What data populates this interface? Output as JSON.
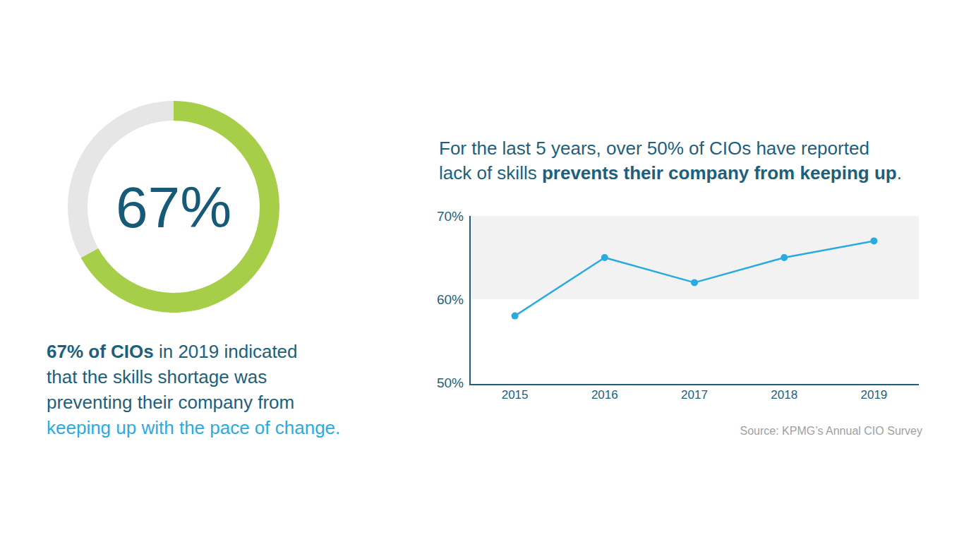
{
  "chart_data": [
    {
      "type": "donut",
      "values": [
        67,
        33
      ],
      "value_labels": [
        "67%",
        null
      ],
      "colors": [
        "#a6ce48",
        "#e6e6e6"
      ],
      "data_labels": true,
      "annotations": [
        "67% of CIOs",
        " in 2019 indicated",
        "that the skills shortage was",
        "preventing their company from",
        "keeping up with the pace of change."
      ]
    },
    {
      "type": "line",
      "title": [
        "For the last 5 years, over 50% of CIOs have reported",
        "lack of skills ",
        "prevents their company from keeping up",
        "."
      ],
      "categories": [
        "2015",
        "2016",
        "2017",
        "2018",
        "2019"
      ],
      "values": [
        58,
        65,
        62,
        65,
        67
      ],
      "color": "#29abe2",
      "marker": "circle",
      "ylim": [
        50,
        70
      ],
      "yticks": [
        {
          "value": 50,
          "label": "50%"
        },
        {
          "value": 60,
          "label": "60%"
        },
        {
          "value": 70,
          "label": "70%"
        }
      ],
      "grid": true,
      "annotations": [
        "Source: KPMG’s Annual CIO Survey"
      ]
    }
  ]
}
